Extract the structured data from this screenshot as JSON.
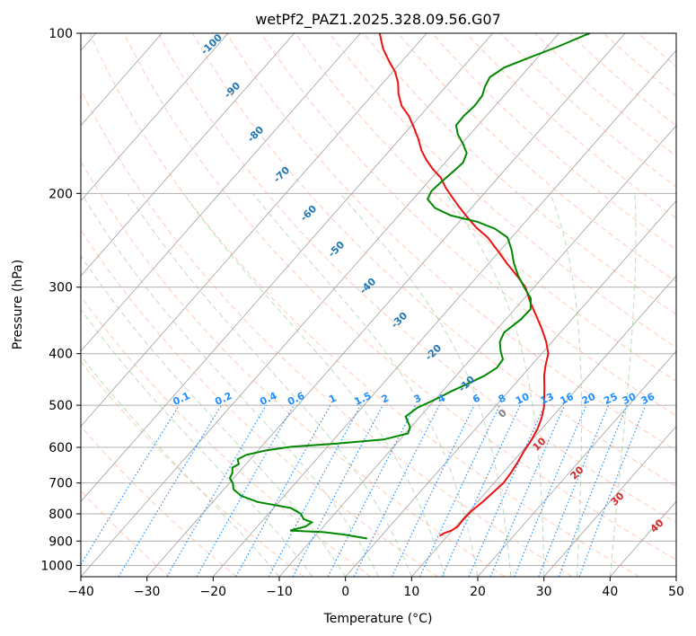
{
  "chart_data": {
    "type": "skew-t",
    "title": "wetPf2_PAZ1.2025.328.09.56.G07",
    "xlabel": "Temperature (°C)",
    "ylabel": "Pressure (hPa)",
    "xlim": [
      -40,
      50
    ],
    "ylim": [
      1050,
      100
    ],
    "y_scale": "log",
    "grid": true,
    "x_ticks": [
      -40,
      -30,
      -20,
      -10,
      0,
      10,
      20,
      30,
      40,
      50
    ],
    "x_tick_labels": [
      "−40",
      "−30",
      "−20",
      "−10",
      "0",
      "10",
      "20",
      "30",
      "40",
      "50"
    ],
    "y_ticks": [
      100,
      200,
      300,
      400,
      500,
      600,
      700,
      800,
      900,
      1000
    ],
    "y_tick_labels": [
      "100",
      "200",
      "300",
      "400",
      "500",
      "600",
      "700",
      "800",
      "900",
      "1000"
    ],
    "isotherm_labels": [
      "-100",
      "-90",
      "-80",
      "-70",
      "-60",
      "-50",
      "-40",
      "-30",
      "-20",
      "-10",
      "0",
      "10",
      "20",
      "30",
      "40"
    ],
    "mixing_ratio_labels": [
      "0.1",
      "0.2",
      "0.4",
      "0.6",
      "1",
      "1.5",
      "2",
      "3",
      "4",
      "6",
      "8",
      "10",
      "13",
      "16",
      "20",
      "25",
      "30",
      "36"
    ],
    "colors": {
      "temperature": "#ee1111",
      "dewpoint": "#008800",
      "isotherm_label_cold": "#1f77b4",
      "isotherm_label_warm": "#d62728",
      "isotherm_label_zero": "#7f7f7f",
      "mixing_ratio": "#1f8fff",
      "dry_adiabat": "#ffa07a",
      "moist_adiabat": "#8fc98f",
      "isotherm_line": "#a0a0a0",
      "grid": "#b0b0b0"
    },
    "series": [
      {
        "name": "Temperature",
        "points": [
          [
            8.8,
            880
          ],
          [
            9.1,
            870
          ],
          [
            9.9,
            860
          ],
          [
            10.3,
            845
          ],
          [
            10.2,
            820
          ],
          [
            10.3,
            790
          ],
          [
            10.8,
            760
          ],
          [
            11.1,
            730
          ],
          [
            11.4,
            700
          ],
          [
            11.2,
            670
          ],
          [
            10.8,
            640
          ],
          [
            10.3,
            610
          ],
          [
            9.9,
            580
          ],
          [
            9.4,
            555
          ],
          [
            8.6,
            530
          ],
          [
            7.5,
            505
          ],
          [
            6.0,
            480
          ],
          [
            4.7,
            460
          ],
          [
            3.3,
            440
          ],
          [
            2.1,
            420
          ],
          [
            1.0,
            400
          ],
          [
            -0.9,
            380
          ],
          [
            -3.2,
            360
          ],
          [
            -5.8,
            340
          ],
          [
            -8.6,
            320
          ],
          [
            -11.3,
            300
          ],
          [
            -14.2,
            285
          ],
          [
            -17.4,
            270
          ],
          [
            -20.6,
            255
          ],
          [
            -23.6,
            242
          ],
          [
            -26.6,
            232
          ],
          [
            -29.3,
            222
          ],
          [
            -32.0,
            212
          ],
          [
            -34.4,
            203
          ],
          [
            -36.6,
            195
          ],
          [
            -38.6,
            187
          ],
          [
            -41.0,
            180
          ],
          [
            -43.2,
            173
          ],
          [
            -45.2,
            166
          ],
          [
            -47.2,
            158
          ],
          [
            -49.5,
            150
          ],
          [
            -51.7,
            143
          ],
          [
            -54.1,
            137
          ],
          [
            -56.2,
            130
          ],
          [
            -57.7,
            124
          ],
          [
            -59.7,
            118
          ],
          [
            -61.9,
            113
          ],
          [
            -64.5,
            107
          ],
          [
            -67.1,
            100
          ]
        ]
      },
      {
        "name": "Dewpoint",
        "points": [
          [
            -1.8,
            890
          ],
          [
            -5.8,
            875
          ],
          [
            -9.2,
            866
          ],
          [
            -14.5,
            860
          ],
          [
            -12.7,
            845
          ],
          [
            -12.3,
            830
          ],
          [
            -14.0,
            818
          ],
          [
            -15.1,
            800
          ],
          [
            -17.4,
            780
          ],
          [
            -23.2,
            760
          ],
          [
            -26.5,
            740
          ],
          [
            -28.5,
            720
          ],
          [
            -29.5,
            700
          ],
          [
            -30.6,
            685
          ],
          [
            -30.9,
            670
          ],
          [
            -31.6,
            655
          ],
          [
            -31.1,
            645
          ],
          [
            -31.9,
            632
          ],
          [
            -31.2,
            620
          ],
          [
            -28.8,
            608
          ],
          [
            -25.4,
            598
          ],
          [
            -18.9,
            590
          ],
          [
            -12.5,
            580
          ],
          [
            -9.6,
            565
          ],
          [
            -10.1,
            550
          ],
          [
            -12.2,
            525
          ],
          [
            -11.6,
            505
          ],
          [
            -10.2,
            490
          ],
          [
            -9.4,
            480
          ],
          [
            -8.6,
            470
          ],
          [
            -7.1,
            455
          ],
          [
            -5.7,
            440
          ],
          [
            -4.9,
            425
          ],
          [
            -5.1,
            410
          ],
          [
            -6.6,
            395
          ],
          [
            -7.9,
            380
          ],
          [
            -8.5,
            365
          ],
          [
            -7.7,
            345
          ],
          [
            -7.6,
            330
          ],
          [
            -9.0,
            315
          ],
          [
            -11.5,
            300
          ],
          [
            -14.0,
            285
          ],
          [
            -16.3,
            270
          ],
          [
            -18.4,
            255
          ],
          [
            -20.6,
            242
          ],
          [
            -23.7,
            233
          ],
          [
            -27.3,
            226
          ],
          [
            -32.1,
            220
          ],
          [
            -35.5,
            213
          ],
          [
            -37.8,
            205
          ],
          [
            -38.3,
            198
          ],
          [
            -38.0,
            190
          ],
          [
            -37.6,
            182
          ],
          [
            -37.3,
            175
          ],
          [
            -38.0,
            168
          ],
          [
            -39.9,
            161
          ],
          [
            -41.8,
            155
          ],
          [
            -43.3,
            149
          ],
          [
            -43.4,
            143
          ],
          [
            -43.1,
            137
          ],
          [
            -43.3,
            131
          ],
          [
            -44.1,
            126
          ],
          [
            -44.6,
            121
          ],
          [
            -43.7,
            116
          ],
          [
            -41.2,
            111
          ],
          [
            -38.4,
            106
          ],
          [
            -35.9,
            101
          ],
          [
            -35.3,
            100
          ]
        ]
      }
    ]
  }
}
